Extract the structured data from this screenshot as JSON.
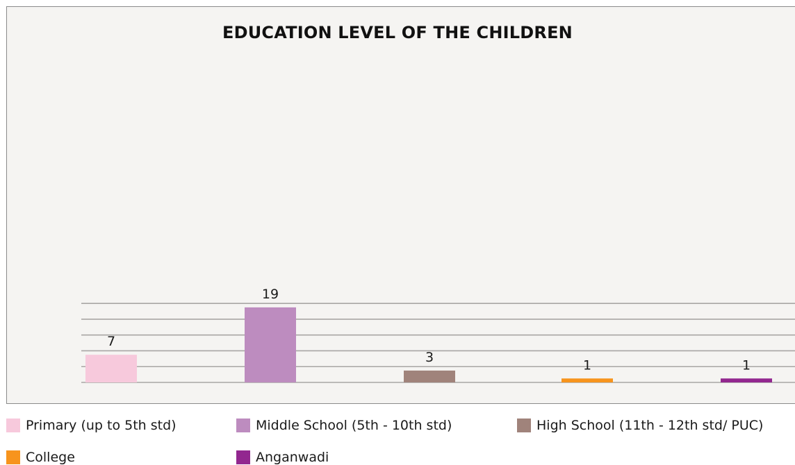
{
  "chart_data": {
    "type": "bar",
    "title": "EDUCATION LEVEL OF THE CHILDREN",
    "categories": [
      "Primary (up to 5th std)",
      "Middle School (5th - 10th std)",
      "High School (11th - 12th std/ PUC)",
      "College",
      "Anganwadi"
    ],
    "values": [
      7,
      19,
      3,
      1,
      1
    ],
    "colors": [
      "#f7c9dc",
      "#bd8cbf",
      "#a0837b",
      "#f7941d",
      "#92278f"
    ],
    "ylim": [
      0,
      20
    ],
    "grid": true,
    "legend_position": "bottom"
  },
  "legend": {
    "items": [
      "Primary (up to 5th std)",
      "Middle School (5th - 10th std)",
      "High School (11th - 12th std/ PUC)",
      "College",
      "Anganwadi"
    ]
  }
}
